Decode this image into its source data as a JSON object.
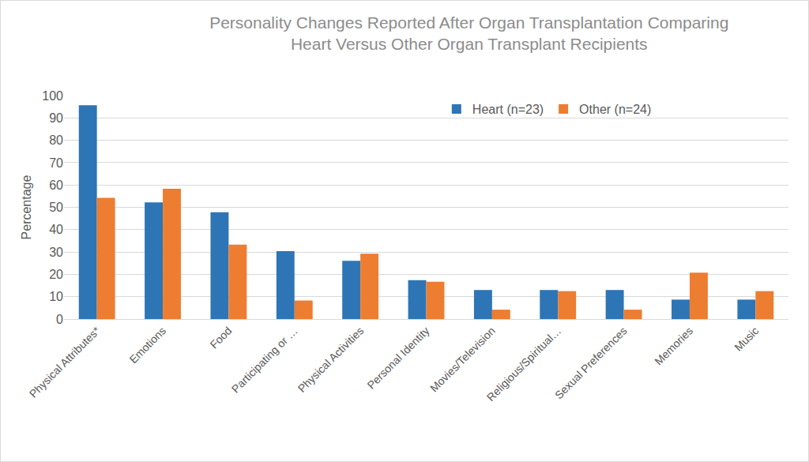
{
  "chart_data": {
    "type": "bar",
    "title": "Personality Changes Reported After Organ Transplantation Comparing\nHeart Versus Other Organ Transplant Recipients",
    "y_label": "Percentage",
    "categories": [
      "Physical Attributes*",
      "Emotions",
      "Food",
      "Participating or …",
      "Physical Activities",
      "Personal Identity",
      "Movies/Television",
      "Religious/Spiritual…",
      "Sexual Preferences",
      "Memories",
      "Music"
    ],
    "series": [
      {
        "name": "Heart (n=23)",
        "color": "#2E75B6",
        "values": [
          95.7,
          52.2,
          47.8,
          30.4,
          26.1,
          17.4,
          13.0,
          13.0,
          13.0,
          8.7,
          8.7
        ]
      },
      {
        "name": "Other (n=24)",
        "color": "#ED7D31",
        "values": [
          54.2,
          58.3,
          33.3,
          8.3,
          29.2,
          16.7,
          4.2,
          12.5,
          4.2,
          20.8,
          12.5
        ]
      }
    ],
    "ylim": [
      0,
      100
    ],
    "yticks": [
      0,
      10,
      20,
      30,
      40,
      50,
      60,
      70,
      80,
      90,
      100
    ],
    "grid": true,
    "legend": "top"
  }
}
